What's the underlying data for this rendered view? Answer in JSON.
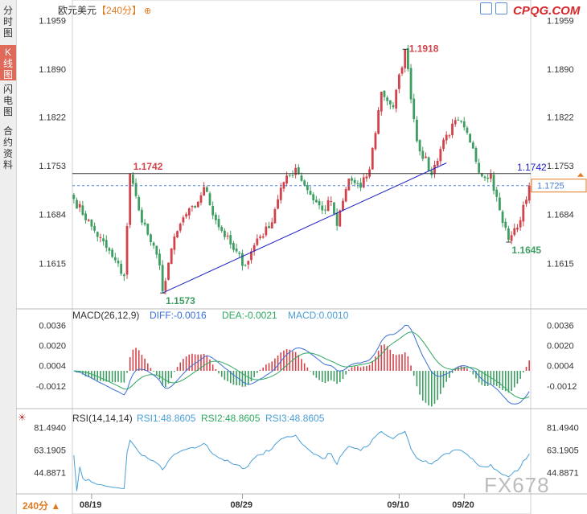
{
  "sidebar": {
    "tabs": [
      {
        "label": "分时图",
        "active": false
      },
      {
        "label": "K线图",
        "active": true
      },
      {
        "label": "闪电图",
        "active": false
      },
      {
        "label": "合约资料",
        "active": false
      }
    ]
  },
  "header": {
    "title": "欧元美元",
    "period": "【240分】",
    "plus_icon": "circle-plus-icon",
    "logo": "CPQG.COM"
  },
  "watermark": "FX678",
  "footer": {
    "period_label": "240分"
  },
  "colors": {
    "up": "#d2424a",
    "down": "#3e9e62",
    "diff": "#3a6fd6",
    "dea": "#2fa860",
    "rsi": "#4a9fd6",
    "trend": "#2020c8",
    "current": "#4a7fd6"
  },
  "chart_data": [
    {
      "type": "candlestick",
      "name": "price",
      "yticks": [
        "1.1959",
        "1.1890",
        "1.1822",
        "1.1753",
        "1.1684",
        "1.1615"
      ],
      "ylim": [
        1.1555,
        1.1965
      ],
      "xticks": [
        "08/19",
        "08/29",
        "09/10",
        "09/20"
      ],
      "annotations": {
        "high": "1.1918",
        "low": "1.1573",
        "resistance": "1.1742",
        "recent_low": "1.1645",
        "trend_end": "1.1742",
        "current": "1.1725"
      },
      "resistance_level": 1.1742,
      "current_price": 1.1725,
      "trendline": {
        "from": {
          "bar": 30,
          "price": 1.1573
        },
        "to": {
          "bar": 126,
          "price": 1.1757
        }
      },
      "waypoints": [
        [
          0,
          1.1706
        ],
        [
          6,
          1.1667
        ],
        [
          13,
          1.1624
        ],
        [
          17,
          1.1597
        ],
        [
          19,
          1.1742
        ],
        [
          22,
          1.169
        ],
        [
          26,
          1.1645
        ],
        [
          29,
          1.1612
        ],
        [
          30,
          1.1575
        ],
        [
          33,
          1.1636
        ],
        [
          37,
          1.168
        ],
        [
          41,
          1.1694
        ],
        [
          44,
          1.1723
        ],
        [
          48,
          1.1676
        ],
        [
          54,
          1.1634
        ],
        [
          58,
          1.1612
        ],
        [
          62,
          1.165
        ],
        [
          66,
          1.1665
        ],
        [
          70,
          1.1722
        ],
        [
          75,
          1.175
        ],
        [
          80,
          1.1712
        ],
        [
          84,
          1.169
        ],
        [
          87,
          1.1703
        ],
        [
          89,
          1.1668
        ],
        [
          93,
          1.1735
        ],
        [
          97,
          1.1722
        ],
        [
          100,
          1.1748
        ],
        [
          104,
          1.1858
        ],
        [
          108,
          1.1836
        ],
        [
          112,
          1.1918
        ],
        [
          116,
          1.1788
        ],
        [
          121,
          1.174
        ],
        [
          125,
          1.179
        ],
        [
          130,
          1.1818
        ],
        [
          134,
          1.1786
        ],
        [
          138,
          1.1738
        ],
        [
          141,
          1.1742
        ],
        [
          144,
          1.169
        ],
        [
          147,
          1.1648
        ],
        [
          151,
          1.1676
        ],
        [
          154,
          1.1725
        ]
      ]
    },
    {
      "type": "macd",
      "title": "MACD(26,12,9)",
      "diff_label": "DIFF:-0.0016",
      "dea_label": "DEA:-0.0021",
      "macd_label": "MACD:0.0010",
      "yticks": [
        "0.0036",
        "0.0020",
        "0.0004",
        "-0.0012"
      ],
      "ylim": [
        -0.0028,
        0.0042
      ]
    },
    {
      "type": "rsi",
      "title": "RSI(14,14,14)",
      "rsi1_label": "RSI1:48.8605",
      "rsi2_label": "RSI2:48.8605",
      "rsi3_label": "RSI3:48.8605",
      "yticks": [
        "81.4940",
        "63.1905",
        "44.8871"
      ],
      "ylim": [
        29,
        89
      ]
    }
  ]
}
